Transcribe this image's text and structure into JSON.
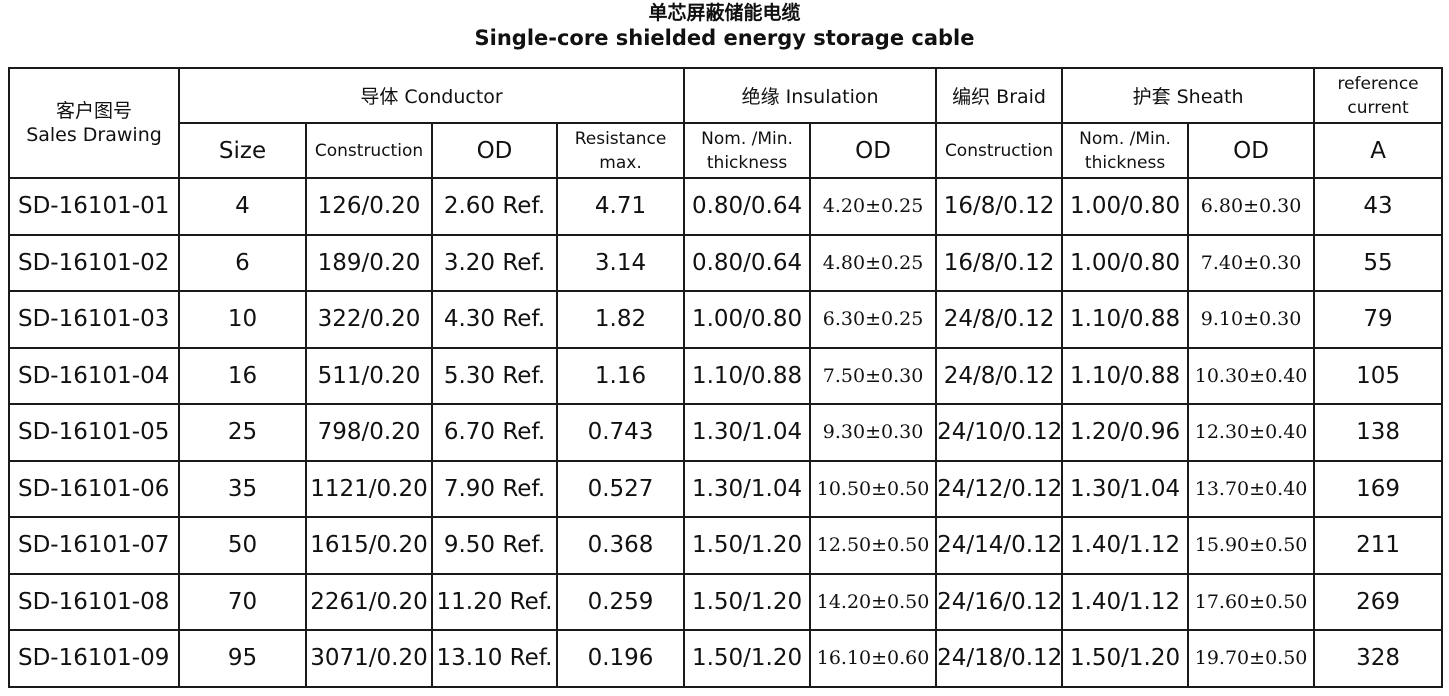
{
  "title": {
    "cn": "单芯屏蔽储能电缆",
    "en": "Single-core shielded energy storage cable"
  },
  "header": {
    "drawing_cn": "客户图号",
    "drawing_en": "Sales Drawing",
    "conductor": "导体 Conductor",
    "insulation": "绝缘 Insulation",
    "braid": "编织 Braid",
    "sheath": "护套 Sheath",
    "reference_l1": "reference",
    "reference_l2": "current",
    "size": "Size",
    "construction": "Construction",
    "od": "OD",
    "resistance_l1": "Resistance",
    "resistance_l2": "max.",
    "ins_thk_l1": "Nom. /Min.",
    "ins_thk_l2": "thickness",
    "ins_od": "OD",
    "braid_construction": "Construction",
    "sh_thk_l1": "Nom. /Min.",
    "sh_thk_l2": "thickness",
    "sh_od": "OD",
    "unit_a": "A"
  },
  "rows": [
    {
      "drawing": "SD-16101-01",
      "size": "4",
      "construction": "126/0.20",
      "od": "2.60 Ref.",
      "resistance": "4.71",
      "ins_thickness": "0.80/0.64",
      "ins_od": "4.20±0.25",
      "braid": "16/8/0.12",
      "sh_thickness": "1.00/0.80",
      "sh_od": "6.80±0.30",
      "current": "43"
    },
    {
      "drawing": "SD-16101-02",
      "size": "6",
      "construction": "189/0.20",
      "od": "3.20 Ref.",
      "resistance": "3.14",
      "ins_thickness": "0.80/0.64",
      "ins_od": "4.80±0.25",
      "braid": "16/8/0.12",
      "sh_thickness": "1.00/0.80",
      "sh_od": "7.40±0.30",
      "current": "55"
    },
    {
      "drawing": "SD-16101-03",
      "size": "10",
      "construction": "322/0.20",
      "od": "4.30 Ref.",
      "resistance": "1.82",
      "ins_thickness": "1.00/0.80",
      "ins_od": "6.30±0.25",
      "braid": "24/8/0.12",
      "sh_thickness": "1.10/0.88",
      "sh_od": "9.10±0.30",
      "current": "79"
    },
    {
      "drawing": "SD-16101-04",
      "size": "16",
      "construction": "511/0.20",
      "od": "5.30 Ref.",
      "resistance": "1.16",
      "ins_thickness": "1.10/0.88",
      "ins_od": "7.50±0.30",
      "braid": "24/8/0.12",
      "sh_thickness": "1.10/0.88",
      "sh_od": "10.30±0.40",
      "current": "105"
    },
    {
      "drawing": "SD-16101-05",
      "size": "25",
      "construction": "798/0.20",
      "od": "6.70 Ref.",
      "resistance": "0.743",
      "ins_thickness": "1.30/1.04",
      "ins_od": "9.30±0.30",
      "braid": "24/10/0.12",
      "sh_thickness": "1.20/0.96",
      "sh_od": "12.30±0.40",
      "current": "138"
    },
    {
      "drawing": "SD-16101-06",
      "size": "35",
      "construction": "1121/0.20",
      "od": "7.90 Ref.",
      "resistance": "0.527",
      "ins_thickness": "1.30/1.04",
      "ins_od": "10.50±0.50",
      "braid": "24/12/0.12",
      "sh_thickness": "1.30/1.04",
      "sh_od": "13.70±0.40",
      "current": "169"
    },
    {
      "drawing": "SD-16101-07",
      "size": "50",
      "construction": "1615/0.20",
      "od": "9.50 Ref.",
      "resistance": "0.368",
      "ins_thickness": "1.50/1.20",
      "ins_od": "12.50±0.50",
      "braid": "24/14/0.12",
      "sh_thickness": "1.40/1.12",
      "sh_od": "15.90±0.50",
      "current": "211"
    },
    {
      "drawing": "SD-16101-08",
      "size": "70",
      "construction": "2261/0.20",
      "od": "11.20 Ref.",
      "resistance": "0.259",
      "ins_thickness": "1.50/1.20",
      "ins_od": "14.20±0.50",
      "braid": "24/16/0.12",
      "sh_thickness": "1.40/1.12",
      "sh_od": "17.60±0.50",
      "current": "269"
    },
    {
      "drawing": "SD-16101-09",
      "size": "95",
      "construction": "3071/0.20",
      "od": "13.10 Ref.",
      "resistance": "0.196",
      "ins_thickness": "1.50/1.20",
      "ins_od": "16.10±0.60",
      "braid": "24/18/0.12",
      "sh_thickness": "1.50/1.20",
      "sh_od": "19.70±0.50",
      "current": "328"
    }
  ]
}
